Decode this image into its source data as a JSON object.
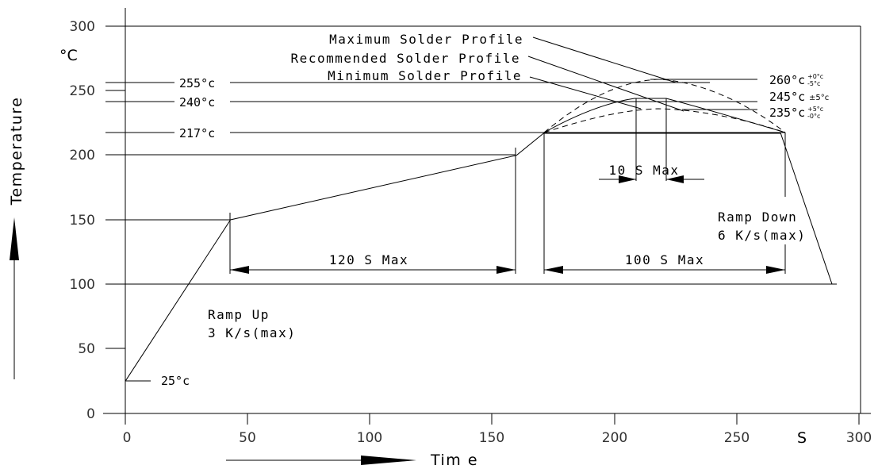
{
  "chart_data": {
    "type": "line",
    "x_unit": "S",
    "y_unit": "°C",
    "xlabel": "Tim e",
    "ylabel": "Temperature",
    "xlim": [
      0,
      300
    ],
    "ylim": [
      0,
      300
    ],
    "x_ticks": [
      "0",
      "50",
      "100",
      "150",
      "200",
      "250",
      "300"
    ],
    "y_ticks": [
      "0",
      "50",
      "100",
      "150",
      "200",
      "250",
      "300"
    ],
    "profile": {
      "x": [
        0,
        43,
        160,
        171,
        268,
        289
      ],
      "y": [
        25,
        150,
        200,
        217,
        217,
        100
      ]
    },
    "temp_markers": [
      {
        "label": "255°c",
        "value": 255
      },
      {
        "label": "240°c",
        "value": 240
      },
      {
        "label": "217°c",
        "value": 217
      },
      {
        "label": "25°c",
        "value": 25
      }
    ],
    "peak_labels": [
      {
        "main": "260°c",
        "tol_upper": "+0°c",
        "tol_lower": "-5°c",
        "value": 260
      },
      {
        "main": "245°c",
        "tol": "±5°c",
        "value": 245
      },
      {
        "main": "235°c",
        "tol_upper": "+5°c",
        "tol_lower": "-0°c",
        "value": 235
      }
    ],
    "profiles_legend": [
      "Maximum Solder Profile",
      "Recommended Solder Profile",
      "Minimum Solder Profile"
    ],
    "annotations": {
      "ramp_up_line1": "Ramp Up",
      "ramp_up_line2": "3 K/s(max)",
      "ramp_down_line1": "Ramp Down",
      "ramp_down_line2": "6 K/s(max)",
      "preheat_duration": "120 S Max",
      "reflow_duration": "100 S Max",
      "peak_duration": "10 S Max"
    }
  }
}
